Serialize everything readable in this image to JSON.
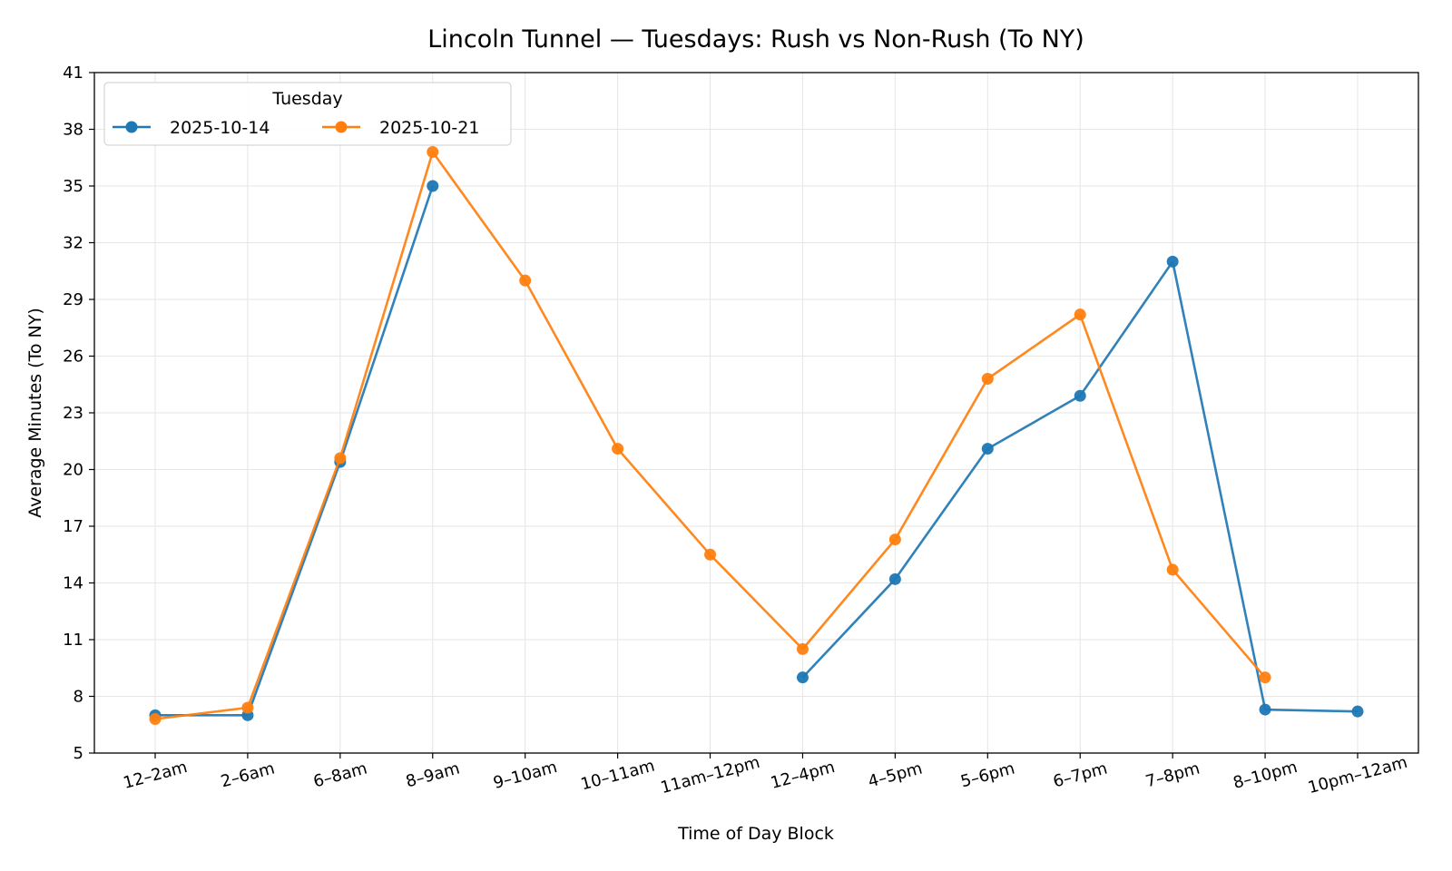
{
  "chart_data": {
    "type": "line",
    "title": "Lincoln Tunnel — Tuesdays: Rush vs Non-Rush (To NY)",
    "xlabel": "Time of Day Block",
    "ylabel": "Average Minutes (To NY)",
    "categories": [
      "12–2am",
      "2–6am",
      "6–8am",
      "8–9am",
      "9–10am",
      "10–11am",
      "11am–12pm",
      "12–4pm",
      "4–5pm",
      "5–6pm",
      "6–7pm",
      "7–8pm",
      "8–10pm",
      "10pm–12am"
    ],
    "yticks": [
      5,
      8,
      11,
      14,
      17,
      20,
      23,
      26,
      29,
      32,
      35,
      38,
      41
    ],
    "ylim": [
      5,
      41
    ],
    "grid": true,
    "legend": {
      "title": "Tuesday",
      "placement": "upper-left"
    },
    "series": [
      {
        "name": "2025-10-14",
        "color": "#1f77b4",
        "values": [
          7.0,
          7.0,
          20.4,
          35.0,
          null,
          null,
          null,
          9.0,
          14.2,
          21.1,
          23.9,
          31.0,
          7.3,
          7.2
        ]
      },
      {
        "name": "2025-10-21",
        "color": "#ff7f0e",
        "values": [
          6.8,
          7.4,
          20.6,
          36.8,
          30.0,
          21.1,
          15.5,
          10.5,
          16.3,
          24.8,
          28.2,
          14.7,
          9.0,
          null
        ]
      }
    ]
  }
}
